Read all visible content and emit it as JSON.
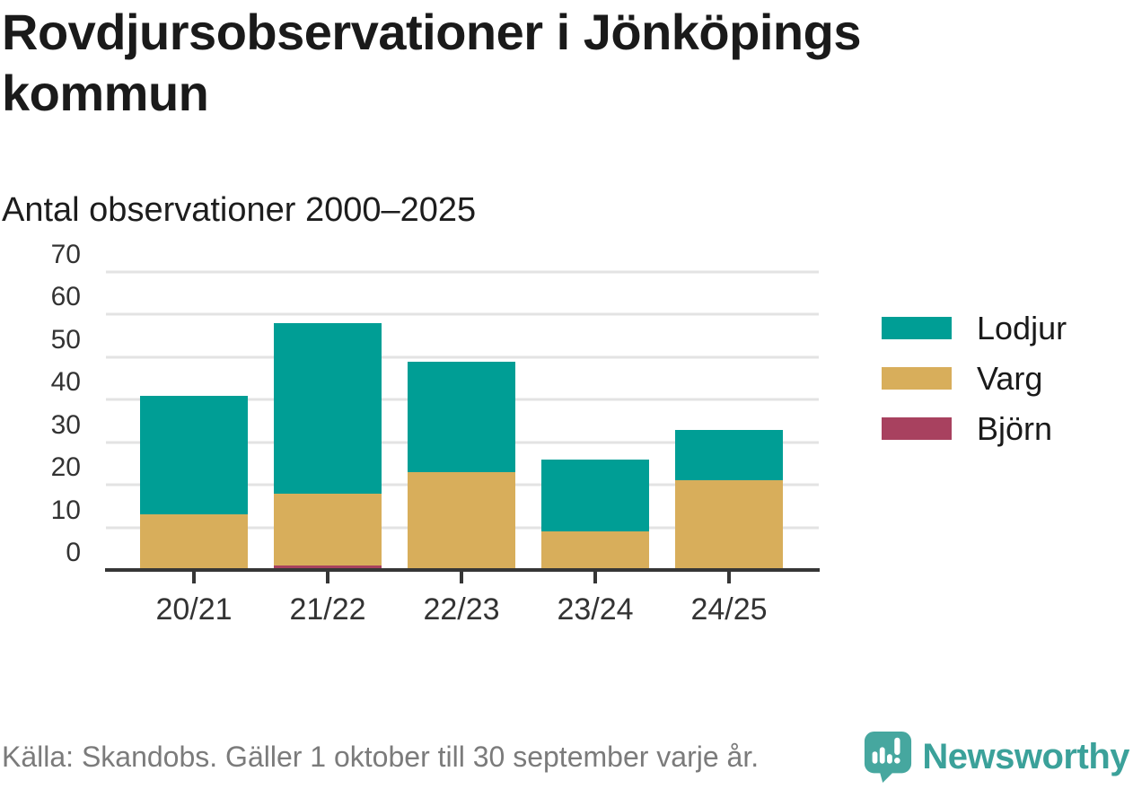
{
  "header": {
    "title": "Rovdjursobservationer i Jönköpings kommun",
    "subtitle": "Antal observationer 2000–2025"
  },
  "chart_data": {
    "type": "bar",
    "stacked": true,
    "title": "Rovdjursobservationer i Jönköpings kommun",
    "subtitle": "Antal observationer 2000–2025",
    "categories": [
      "20/21",
      "21/22",
      "22/23",
      "23/24",
      "24/25"
    ],
    "series": [
      {
        "name": "Lodjur",
        "color": "#009e95",
        "values": [
          28,
          40,
          26,
          17,
          12
        ]
      },
      {
        "name": "Varg",
        "color": "#d8ae5b",
        "values": [
          13,
          17,
          23,
          9,
          21
        ]
      },
      {
        "name": "Björn",
        "color": "#a8415f",
        "values": [
          0,
          1,
          0,
          0,
          0
        ]
      }
    ],
    "stack_order_bottom_to_top": [
      "Björn",
      "Varg",
      "Lodjur"
    ],
    "totals": [
      41,
      58,
      49,
      26,
      33
    ],
    "xlabel": "",
    "ylabel": "",
    "ylim": [
      0,
      70
    ],
    "yticks": [
      0,
      10,
      20,
      30,
      40,
      50,
      60,
      70
    ],
    "grid": "horizontal",
    "legend_position": "right"
  },
  "footer": {
    "source": "Källa: Skandobs. Gäller 1 oktober till 30 september varje år.",
    "brand": "Newsworthy"
  },
  "colors": {
    "title_text": "#1a1a1a",
    "axis_text": "#333333",
    "gridline": "#e3e3e3",
    "axis_line": "#363636",
    "source_text": "#7b7b7b",
    "brand_teal": "#3ba19a",
    "background": "#ffffff"
  }
}
